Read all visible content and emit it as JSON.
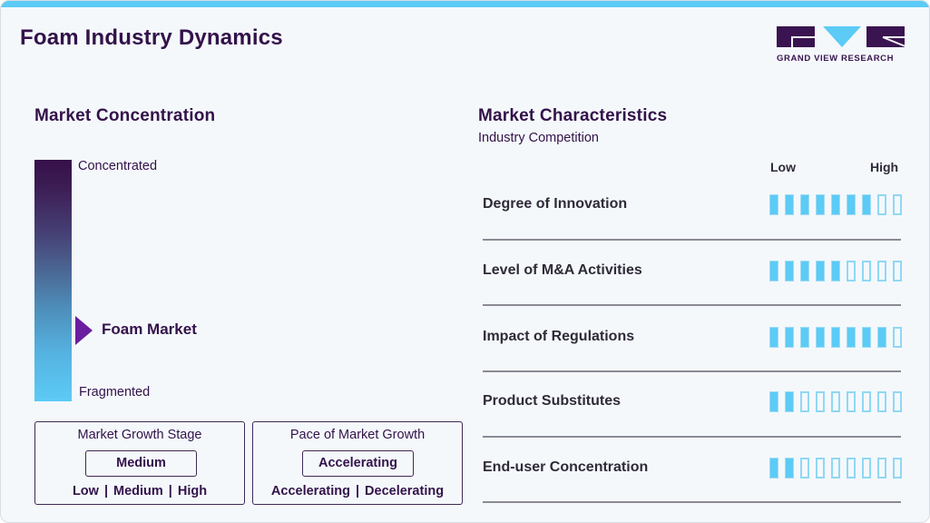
{
  "header": {
    "title": "Foam Industry Dynamics",
    "logo_text": "GRAND VIEW RESEARCH"
  },
  "concentration": {
    "title": "Market Concentration",
    "top_label": "Concentrated",
    "bottom_label": "Fragmented",
    "marker_label": "Foam Market",
    "marker_position_pct": 70
  },
  "growth_stage": {
    "title": "Market Growth Stage",
    "value": "Medium",
    "options": [
      "Low",
      "Medium",
      "High"
    ]
  },
  "growth_pace": {
    "title": "Pace of Market Growth",
    "value": "Accelerating",
    "options": [
      "Accelerating",
      "Decelerating"
    ]
  },
  "characteristics": {
    "title": "Market Characteristics",
    "subtitle": "Industry Competition",
    "scale_low": "Low",
    "scale_high": "High",
    "max_level": 9,
    "rows": [
      {
        "label": "Degree of Innovation",
        "level": 7
      },
      {
        "label": "Level of M&A Activities",
        "level": 5
      },
      {
        "label": "Impact of Regulations",
        "level": 8
      },
      {
        "label": "Product Substitutes",
        "level": 2
      },
      {
        "label": "End-user Concentration",
        "level": 2
      }
    ]
  },
  "colors": {
    "brand_purple": "#33124a",
    "accent_blue": "#5ccbf5",
    "marker_purple": "#6a1ea0"
  }
}
